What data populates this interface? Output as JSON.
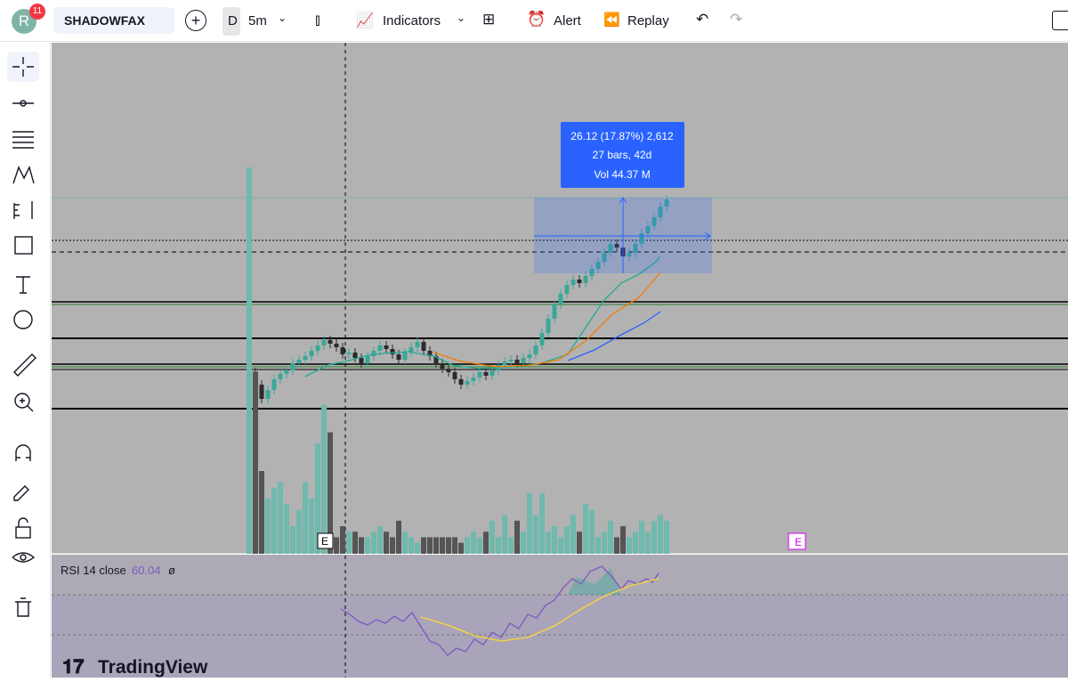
{
  "toolbar": {
    "avatar": "R",
    "badge": "11",
    "symbol": "SHADOWFAX",
    "interval_type": "D",
    "interval": "5m",
    "indicators": "Indicators",
    "alert": "Alert",
    "replay": "Replay"
  },
  "measure": {
    "line1": "26.12 (17.87%) 2,612",
    "line2": "27 bars, 42d",
    "line3": "Vol 44.37 M"
  },
  "markers": [
    "E",
    "E"
  ],
  "rsi": {
    "label": "RSI 14 close",
    "value": "60.04",
    "extra": "ø"
  },
  "logo": "TradingView"
}
